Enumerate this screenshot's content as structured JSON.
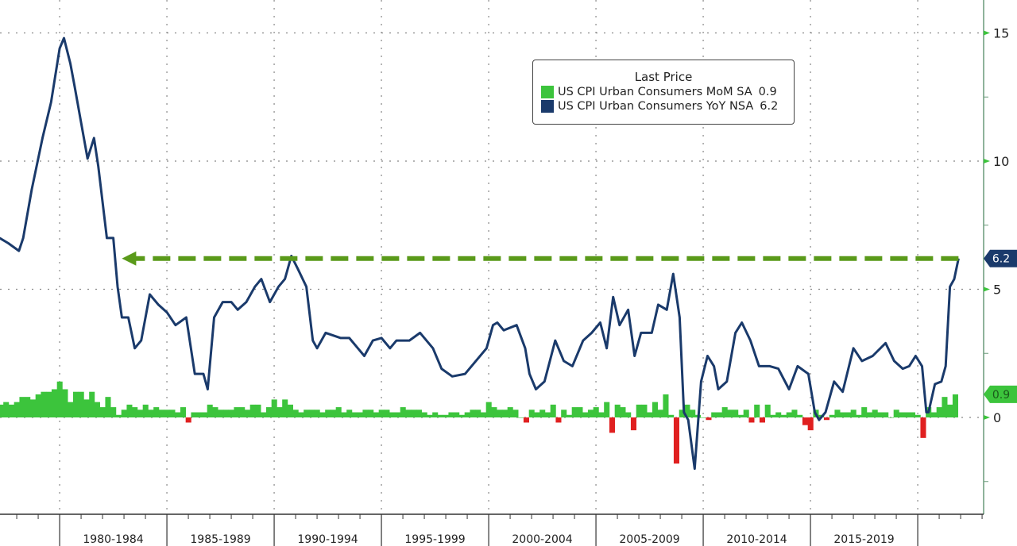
{
  "chart_data": {
    "type": "bar+line",
    "title": "",
    "legend": {
      "title": "Last Price",
      "placement": "top-center",
      "entries": [
        {
          "name": "US CPI Urban Consumers MoM SA",
          "last": "0.9",
          "color": "#3cc43c"
        },
        {
          "name": "US CPI Urban Consumers YoY NSA",
          "last": "6.2",
          "color": "#1a3a6b"
        }
      ]
    },
    "negative_color": "#e02020",
    "arrow_color": "#5a9a1a",
    "arrow": {
      "from_year": 2021.9,
      "to_year": 1982.9,
      "value": 6.2
    },
    "x_range": [
      1977.2,
      2023.7
    ],
    "y_range": [
      -3.7,
      16.3
    ],
    "y_ticks": [
      0,
      5,
      10,
      15
    ],
    "y_tick_labels": [
      "0",
      "5",
      "10",
      "15"
    ],
    "x_period_labels": [
      "1980-1984",
      "1985-1989",
      "1990-1994",
      "1995-1999",
      "2000-2004",
      "2005-2009",
      "2010-2014",
      "2015-2019"
    ],
    "x_period_starts": [
      1980,
      1985,
      1990,
      1995,
      2000,
      2005,
      2010,
      2015,
      2020
    ],
    "last_value_tags": [
      {
        "series": "YoY",
        "label": "6.2",
        "value": 6.2
      },
      {
        "series": "MoM",
        "label": "0.9",
        "value": 0.9
      }
    ],
    "mom_start": 1977.25,
    "mom_step": 0.25,
    "mom": [
      0.5,
      0.6,
      0.5,
      0.6,
      0.8,
      0.8,
      0.7,
      0.9,
      1.0,
      1.0,
      1.1,
      1.4,
      1.1,
      0.6,
      1.0,
      1.0,
      0.7,
      1.0,
      0.6,
      0.4,
      0.8,
      0.4,
      0.1,
      0.3,
      0.5,
      0.4,
      0.3,
      0.5,
      0.3,
      0.4,
      0.3,
      0.3,
      0.3,
      0.2,
      0.4,
      -0.2,
      0.2,
      0.2,
      0.2,
      0.5,
      0.4,
      0.3,
      0.3,
      0.3,
      0.4,
      0.4,
      0.3,
      0.5,
      0.5,
      0.2,
      0.4,
      0.7,
      0.4,
      0.7,
      0.5,
      0.3,
      0.2,
      0.3,
      0.3,
      0.3,
      0.2,
      0.3,
      0.3,
      0.4,
      0.2,
      0.3,
      0.2,
      0.2,
      0.3,
      0.3,
      0.2,
      0.3,
      0.3,
      0.2,
      0.2,
      0.4,
      0.3,
      0.3,
      0.3,
      0.2,
      0.1,
      0.2,
      0.1,
      0.1,
      0.2,
      0.2,
      0.1,
      0.2,
      0.3,
      0.3,
      0.2,
      0.6,
      0.4,
      0.3,
      0.3,
      0.4,
      0.3,
      0.0,
      -0.2,
      0.3,
      0.2,
      0.3,
      0.2,
      0.5,
      -0.2,
      0.3,
      0.1,
      0.4,
      0.4,
      0.2,
      0.3,
      0.4,
      0.2,
      0.6,
      -0.6,
      0.5,
      0.4,
      0.2,
      -0.5,
      0.5,
      0.5,
      0.2,
      0.6,
      0.3,
      0.9,
      0.1,
      -1.8,
      0.3,
      0.5,
      0.3,
      0.1,
      0.0,
      -0.1,
      0.2,
      0.2,
      0.4,
      0.3,
      0.3,
      0.1,
      0.3,
      -0.2,
      0.5,
      -0.2,
      0.5,
      0.1,
      0.2,
      0.1,
      0.2,
      0.3,
      0.1,
      -0.3,
      -0.5,
      0.3,
      0.1,
      -0.1,
      0.1,
      0.3,
      0.2,
      0.2,
      0.3,
      0.1,
      0.4,
      0.2,
      0.3,
      0.2,
      0.2,
      0.0,
      0.3,
      0.2,
      0.2,
      0.2,
      0.1,
      -0.8,
      0.4,
      0.2,
      0.4,
      0.8,
      0.5,
      0.9
    ],
    "yoy": [
      [
        1977.2,
        7.0
      ],
      [
        1977.6,
        6.8
      ],
      [
        1978.1,
        6.5
      ],
      [
        1978.3,
        7.0
      ],
      [
        1978.7,
        8.9
      ],
      [
        1979.2,
        10.9
      ],
      [
        1979.6,
        12.3
      ],
      [
        1980.0,
        14.4
      ],
      [
        1980.2,
        14.8
      ],
      [
        1980.5,
        13.8
      ],
      [
        1980.7,
        12.9
      ],
      [
        1981.0,
        11.5
      ],
      [
        1981.3,
        10.1
      ],
      [
        1981.6,
        10.9
      ],
      [
        1981.8,
        9.8
      ],
      [
        1982.2,
        7.0
      ],
      [
        1982.5,
        7.0
      ],
      [
        1982.7,
        5.1
      ],
      [
        1982.9,
        3.9
      ],
      [
        1983.2,
        3.9
      ],
      [
        1983.5,
        2.7
      ],
      [
        1983.8,
        3.0
      ],
      [
        1984.2,
        4.8
      ],
      [
        1984.6,
        4.4
      ],
      [
        1985.0,
        4.1
      ],
      [
        1985.4,
        3.6
      ],
      [
        1985.9,
        3.9
      ],
      [
        1986.3,
        1.7
      ],
      [
        1986.7,
        1.7
      ],
      [
        1986.9,
        1.1
      ],
      [
        1987.2,
        3.9
      ],
      [
        1987.6,
        4.5
      ],
      [
        1988.0,
        4.5
      ],
      [
        1988.3,
        4.2
      ],
      [
        1988.7,
        4.5
      ],
      [
        1989.1,
        5.1
      ],
      [
        1989.4,
        5.4
      ],
      [
        1989.8,
        4.5
      ],
      [
        1990.2,
        5.1
      ],
      [
        1990.5,
        5.4
      ],
      [
        1990.8,
        6.3
      ],
      [
        1991.1,
        5.8
      ],
      [
        1991.5,
        5.1
      ],
      [
        1991.8,
        3.0
      ],
      [
        1992.0,
        2.7
      ],
      [
        1992.4,
        3.3
      ],
      [
        1993.1,
        3.1
      ],
      [
        1993.5,
        3.1
      ],
      [
        1993.9,
        2.7
      ],
      [
        1994.2,
        2.4
      ],
      [
        1994.6,
        3.0
      ],
      [
        1995.0,
        3.1
      ],
      [
        1995.4,
        2.7
      ],
      [
        1995.7,
        3.0
      ],
      [
        1996.3,
        3.0
      ],
      [
        1996.8,
        3.3
      ],
      [
        1997.4,
        2.7
      ],
      [
        1997.8,
        1.9
      ],
      [
        1998.3,
        1.6
      ],
      [
        1998.9,
        1.7
      ],
      [
        1999.4,
        2.2
      ],
      [
        1999.9,
        2.7
      ],
      [
        2000.2,
        3.6
      ],
      [
        2000.4,
        3.7
      ],
      [
        2000.7,
        3.4
      ],
      [
        2001.3,
        3.6
      ],
      [
        2001.7,
        2.7
      ],
      [
        2001.9,
        1.7
      ],
      [
        2002.2,
        1.1
      ],
      [
        2002.6,
        1.4
      ],
      [
        2003.1,
        3.0
      ],
      [
        2003.5,
        2.2
      ],
      [
        2003.9,
        2.0
      ],
      [
        2004.4,
        3.0
      ],
      [
        2004.8,
        3.3
      ],
      [
        2005.2,
        3.7
      ],
      [
        2005.5,
        2.7
      ],
      [
        2005.8,
        4.7
      ],
      [
        2006.1,
        3.6
      ],
      [
        2006.5,
        4.2
      ],
      [
        2006.8,
        2.4
      ],
      [
        2007.1,
        3.3
      ],
      [
        2007.6,
        3.3
      ],
      [
        2007.9,
        4.4
      ],
      [
        2008.3,
        4.2
      ],
      [
        2008.6,
        5.6
      ],
      [
        2008.9,
        3.9
      ],
      [
        2009.1,
        0.2
      ],
      [
        2009.3,
        -0.1
      ],
      [
        2009.6,
        -2.0
      ],
      [
        2009.9,
        1.4
      ],
      [
        2010.2,
        2.4
      ],
      [
        2010.5,
        2.0
      ],
      [
        2010.7,
        1.1
      ],
      [
        2011.1,
        1.4
      ],
      [
        2011.5,
        3.3
      ],
      [
        2011.8,
        3.7
      ],
      [
        2012.2,
        3.0
      ],
      [
        2012.6,
        2.0
      ],
      [
        2013.1,
        2.0
      ],
      [
        2013.5,
        1.9
      ],
      [
        2014.0,
        1.1
      ],
      [
        2014.4,
        2.0
      ],
      [
        2014.9,
        1.7
      ],
      [
        2015.2,
        0.2
      ],
      [
        2015.4,
        -0.1
      ],
      [
        2015.7,
        0.2
      ],
      [
        2016.1,
        1.4
      ],
      [
        2016.5,
        1.0
      ],
      [
        2017.0,
        2.7
      ],
      [
        2017.4,
        2.2
      ],
      [
        2017.9,
        2.4
      ],
      [
        2018.5,
        2.9
      ],
      [
        2018.9,
        2.2
      ],
      [
        2019.3,
        1.9
      ],
      [
        2019.6,
        2.0
      ],
      [
        2019.9,
        2.4
      ],
      [
        2020.2,
        2.0
      ],
      [
        2020.4,
        0.2
      ],
      [
        2020.5,
        0.2
      ],
      [
        2020.8,
        1.3
      ],
      [
        2021.1,
        1.4
      ],
      [
        2021.3,
        2.0
      ],
      [
        2021.5,
        5.1
      ],
      [
        2021.7,
        5.4
      ],
      [
        2021.9,
        6.2
      ]
    ]
  }
}
